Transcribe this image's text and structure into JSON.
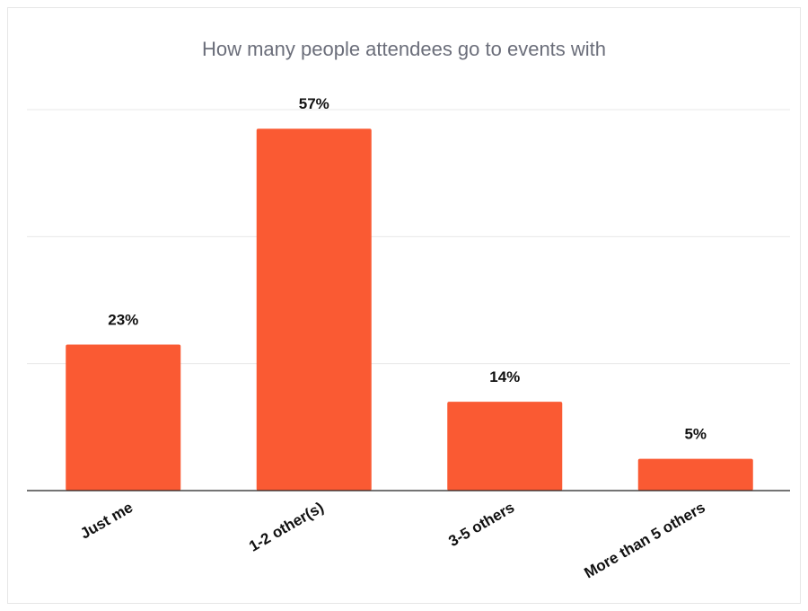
{
  "chart_data": {
    "type": "bar",
    "title": "How many people attendees go to events with",
    "categories": [
      "Just me",
      "1-2 other(s)",
      "3-5 others",
      "More than 5 others"
    ],
    "values": [
      23,
      57,
      14,
      5
    ],
    "value_labels": [
      "23%",
      "57%",
      "14%",
      "5%"
    ],
    "ylim": [
      0,
      60
    ],
    "grid": true,
    "bar_color": "#fa5a33"
  }
}
